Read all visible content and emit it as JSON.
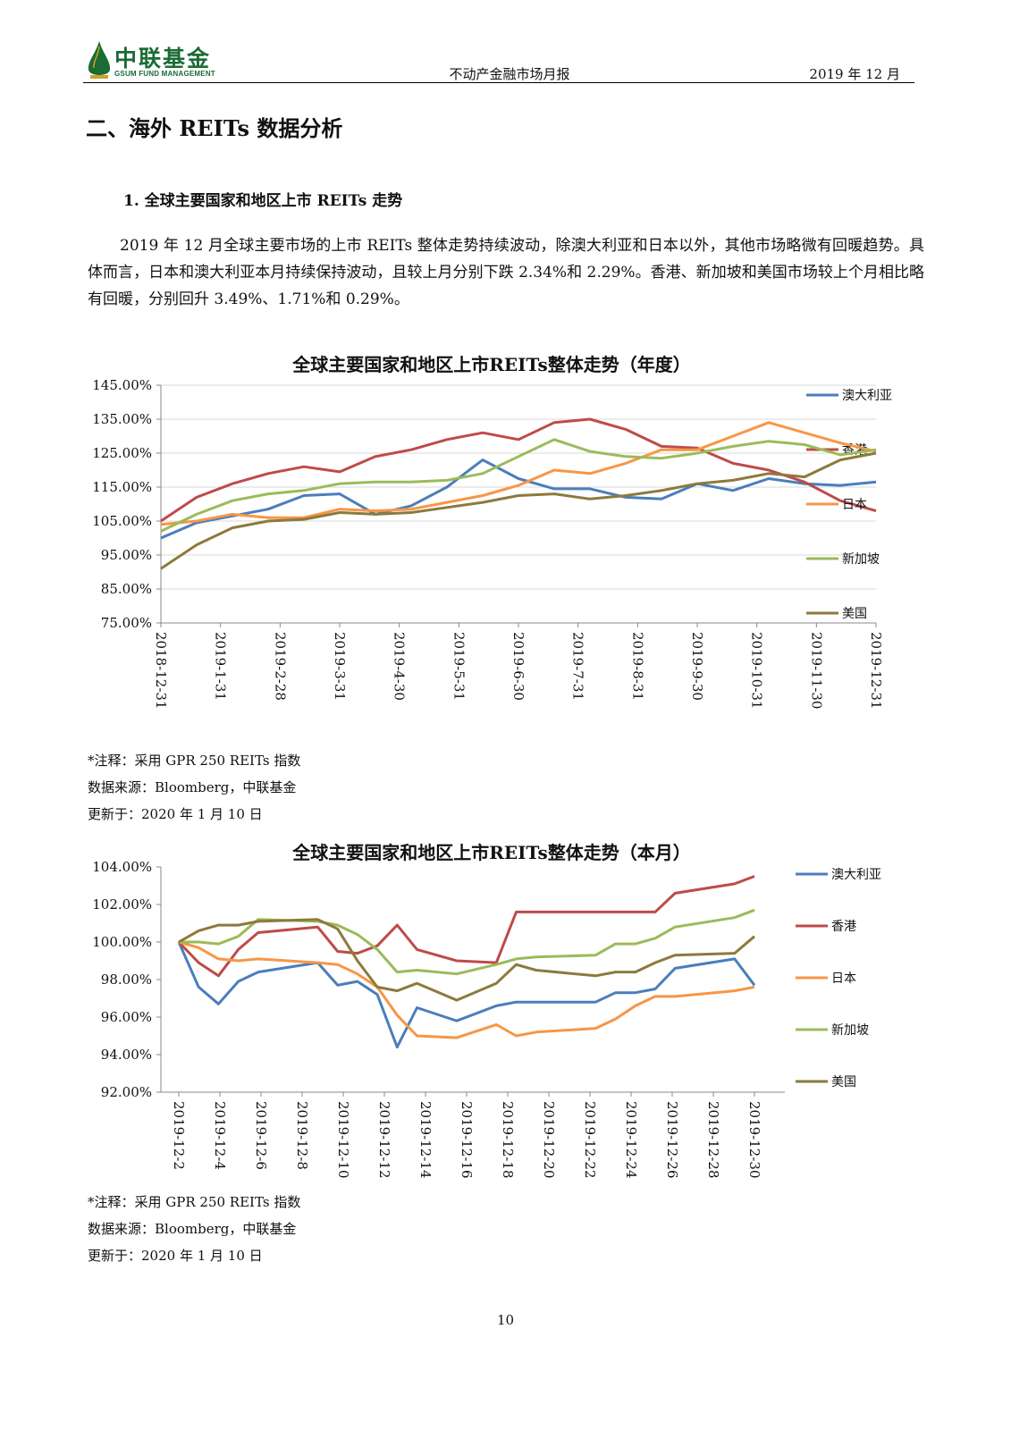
{
  "header": {
    "logo_cn": "中联基金",
    "logo_en": "GSUM FUND MANAGEMENT",
    "center": "不动产金融市场月报",
    "right": "2019 年 12 月"
  },
  "section_title": "二、海外 REITs 数据分析",
  "sub_title": "1.   全球主要国家和地区上市 REITs 走势",
  "paragraph": "2019 年 12 月全球主要市场的上市 REITs 整体走势持续波动，除澳大利亚和日本以外，其他市场略微有回暖趋势。具体而言，日本和澳大利亚本月持续保持波动，且较上月分别下跌 2.34%和 2.29%。香港、新加坡和美国市场较上个月相比略有回暖，分别回升 3.49%、1.71%和 0.29%。",
  "colors": {
    "australia": "#4a7ebb",
    "hongkong": "#be4b48",
    "japan": "#f79646",
    "singapore": "#9bbb59",
    "usa": "#8c7a3c",
    "logo_green": "#1a6b34"
  },
  "chart_data": [
    {
      "type": "line",
      "title": "全球主要国家和地区上市REITs整体走势（年度）",
      "ylim": [
        75,
        145
      ],
      "y_ticks": [
        "145.00%",
        "135.00%",
        "125.00%",
        "115.00%",
        "105.00%",
        "95.00%",
        "85.00%",
        "75.00%"
      ],
      "y_tick_values": [
        145,
        135,
        125,
        115,
        105,
        95,
        85,
        75
      ],
      "x_ticks": [
        "2018-12-31",
        "2019-1-31",
        "2019-2-28",
        "2019-3-31",
        "2019-4-30",
        "2019-5-31",
        "2019-6-30",
        "2019-7-31",
        "2019-8-31",
        "2019-9-30",
        "2019-10-31",
        "2019-11-30",
        "2019-12-31"
      ],
      "grid": true,
      "legend": "right",
      "series": [
        {
          "name": "澳大利亚",
          "values": [
            100,
            104.5,
            106.5,
            108.5,
            112.5,
            113,
            107,
            109.5,
            115,
            123,
            117.5,
            114.5,
            114.5,
            112,
            111.5,
            116,
            114,
            117.5,
            116,
            115.5,
            116.5
          ]
        },
        {
          "name": "香港",
          "values": [
            105,
            112,
            116,
            119,
            121,
            119.5,
            124,
            126,
            129,
            131,
            129,
            134,
            135,
            132,
            127,
            126.5,
            122,
            120,
            116.5,
            111,
            108
          ]
        },
        {
          "name": "日本",
          "values": [
            104,
            105,
            107,
            106,
            106,
            108.5,
            108,
            108.5,
            110.5,
            112.5,
            115.5,
            120,
            119,
            122,
            126,
            126,
            130,
            134,
            131,
            128,
            125.5
          ]
        },
        {
          "name": "新加坡",
          "values": [
            102,
            107,
            111,
            113,
            114,
            116,
            116.5,
            116.5,
            117,
            119,
            124,
            129,
            125.5,
            124,
            123.5,
            125,
            127,
            128.5,
            127.5,
            124.5,
            126
          ]
        },
        {
          "name": "美国",
          "values": [
            91,
            98,
            103,
            105,
            105.5,
            107.5,
            107,
            107.5,
            109,
            110.5,
            112.5,
            113,
            111.5,
            112.5,
            114,
            116,
            117,
            119,
            118,
            123,
            125
          ]
        }
      ]
    },
    {
      "type": "line",
      "title": "全球主要国家和地区上市REITs整体走势（本月）",
      "ylim": [
        92,
        104
      ],
      "y_ticks": [
        "104.00%",
        "102.00%",
        "100.00%",
        "98.00%",
        "96.00%",
        "94.00%",
        "92.00%"
      ],
      "y_tick_values": [
        104,
        102,
        100,
        98,
        96,
        94,
        92
      ],
      "x_ticks": [
        "2019-12-2",
        "2019-12-4",
        "2019-12-6",
        "2019-12-8",
        "2019-12-10",
        "2019-12-12",
        "2019-12-14",
        "2019-12-16",
        "2019-12-18",
        "2019-12-20",
        "2019-12-22",
        "2019-12-24",
        "2019-12-26",
        "2019-12-28",
        "2019-12-30"
      ],
      "x": [
        2,
        3,
        4,
        5,
        6,
        9,
        10,
        11,
        12,
        13,
        14,
        16,
        18,
        19,
        20,
        23,
        24,
        25,
        26,
        27,
        30,
        31
      ],
      "grid": false,
      "legend": "right",
      "series": [
        {
          "name": "澳大利亚",
          "values": [
            100,
            97.6,
            96.7,
            97.9,
            98.4,
            98.9,
            97.7,
            97.9,
            97.2,
            94.4,
            96.5,
            95.8,
            96.6,
            96.8,
            96.8,
            96.8,
            97.3,
            97.3,
            97.5,
            98.6,
            99.1,
            97.7
          ]
        },
        {
          "name": "香港",
          "values": [
            100,
            98.9,
            98.2,
            99.6,
            100.5,
            100.8,
            99.5,
            99.4,
            99.8,
            100.9,
            99.6,
            99.0,
            98.9,
            101.6,
            101.6,
            101.6,
            101.6,
            101.6,
            101.6,
            102.6,
            103.1,
            103.5
          ]
        },
        {
          "name": "日本",
          "values": [
            100,
            99.7,
            99.1,
            99.0,
            99.1,
            98.9,
            98.8,
            98.3,
            97.6,
            96.1,
            95.0,
            94.9,
            95.6,
            95.0,
            95.2,
            95.4,
            95.9,
            96.6,
            97.1,
            97.1,
            97.4,
            97.6
          ]
        },
        {
          "name": "新加坡",
          "values": [
            100,
            100.0,
            99.9,
            100.3,
            101.2,
            101.1,
            100.9,
            100.4,
            99.6,
            98.4,
            98.5,
            98.3,
            98.8,
            99.1,
            99.2,
            99.3,
            99.9,
            99.9,
            100.2,
            100.8,
            101.3,
            101.7
          ]
        },
        {
          "name": "美国",
          "values": [
            100,
            100.6,
            100.9,
            100.9,
            101.1,
            101.2,
            100.7,
            99.0,
            97.6,
            97.4,
            97.8,
            96.9,
            97.8,
            98.8,
            98.5,
            98.2,
            98.4,
            98.4,
            98.9,
            99.3,
            99.4,
            100.3
          ]
        }
      ]
    }
  ],
  "notes1": {
    "note": "*注释：采用 GPR 250 REITs 指数",
    "source": "数据来源：Bloomberg，中联基金",
    "updated": "更新于：2020 年 1 月 10 日"
  },
  "notes2": {
    "note": "*注释：采用 GPR 250 REITs 指数",
    "source": "数据来源：Bloomberg，中联基金",
    "updated": "更新于：2020 年 1 月 10 日"
  },
  "page_number": "10"
}
